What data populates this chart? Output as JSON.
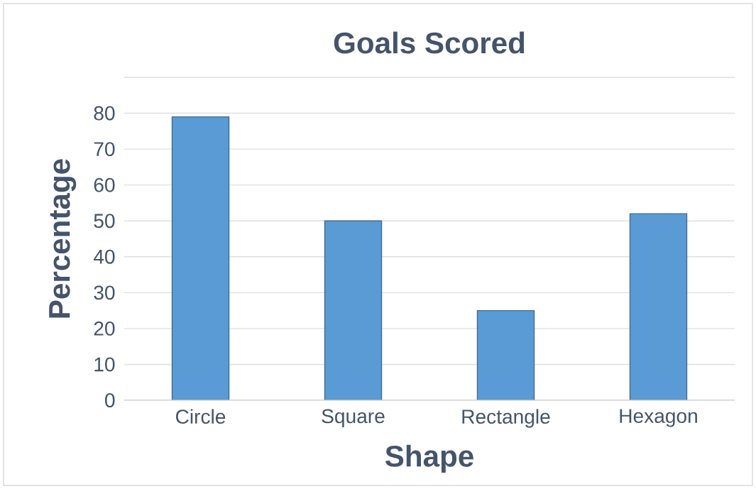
{
  "chart_data": {
    "type": "bar",
    "title": "Goals Scored",
    "xlabel": "Shape",
    "ylabel": "Percentage",
    "categories": [
      "Circle",
      "Square",
      "Rectangle",
      "Hexagon"
    ],
    "values": [
      79,
      50,
      25,
      52
    ],
    "color": "#5b9bd5",
    "ylim": [
      0,
      90
    ],
    "yticks": [
      0,
      10,
      20,
      30,
      40,
      50,
      60,
      70,
      80,
      {
        "value": 90,
        "label": null
      }
    ],
    "grid": "y"
  }
}
